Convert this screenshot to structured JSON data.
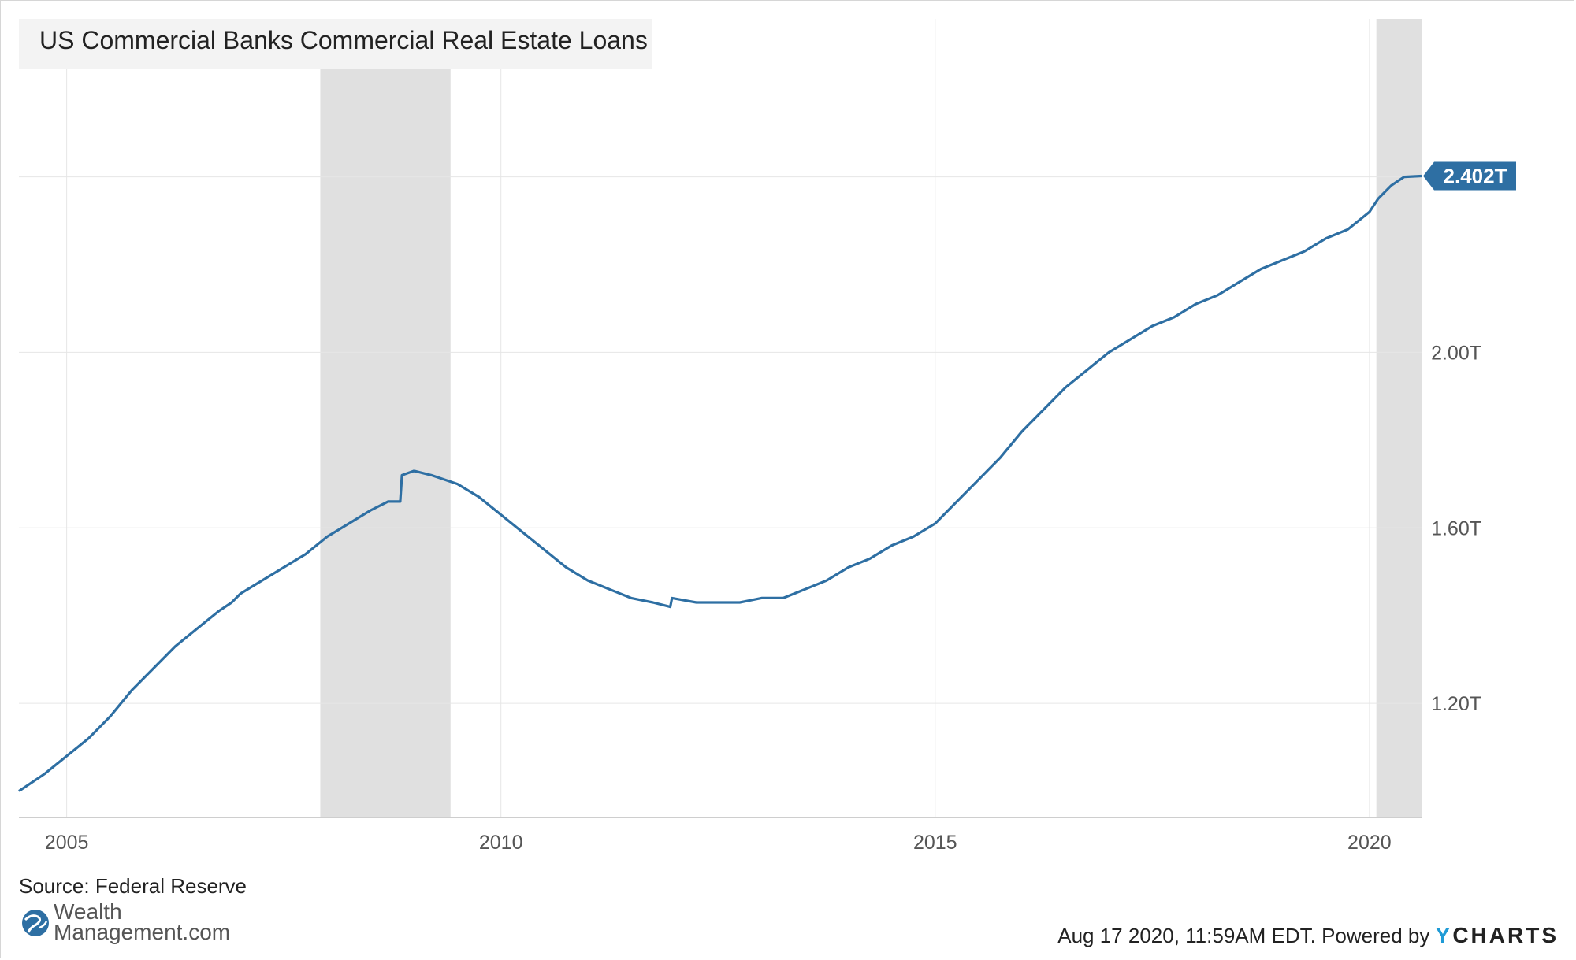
{
  "chart_data": {
    "type": "line",
    "title": "US Commercial Banks Commercial Real Estate Loans",
    "xlabel": "",
    "ylabel": "",
    "xlim": [
      2004.45,
      2020.6
    ],
    "ylim": [
      0.94,
      2.76
    ],
    "x_ticks": [
      2005,
      2010,
      2015,
      2020
    ],
    "x_tick_labels": [
      "2005",
      "2010",
      "2015",
      "2020"
    ],
    "y_ticks": [
      1.2,
      1.6,
      2.0,
      2.4
    ],
    "y_tick_labels": [
      "1.20T",
      "1.60T",
      "2.00T",
      "2.40T"
    ],
    "grid": true,
    "recessions": [
      [
        2007.92,
        2009.42
      ],
      [
        2020.08,
        2020.6
      ]
    ],
    "last_value_label": "2.402T",
    "line_color": "#2e6fa3",
    "badge_color": "#2e6fa3",
    "series": [
      {
        "x": [
          2004.45,
          2004.75,
          2005.0,
          2005.25,
          2005.5,
          2005.75,
          2006.0,
          2006.25,
          2006.5,
          2006.75,
          2006.9,
          2007.0,
          2007.25,
          2007.5,
          2007.75,
          2008.0,
          2008.25,
          2008.5,
          2008.7,
          2008.84,
          2008.86,
          2009.0,
          2009.2,
          2009.5,
          2009.75,
          2010.0,
          2010.25,
          2010.5,
          2010.75,
          2011.0,
          2011.25,
          2011.5,
          2011.75,
          2011.95,
          2011.97,
          2012.25,
          2012.5,
          2012.75,
          2013.0,
          2013.25,
          2013.5,
          2013.75,
          2014.0,
          2014.25,
          2014.5,
          2014.75,
          2015.0,
          2015.25,
          2015.5,
          2015.75,
          2016.0,
          2016.25,
          2016.5,
          2016.75,
          2017.0,
          2017.25,
          2017.5,
          2017.75,
          2018.0,
          2018.25,
          2018.5,
          2018.75,
          2019.0,
          2019.25,
          2019.5,
          2019.75,
          2020.0,
          2020.1,
          2020.25,
          2020.4,
          2020.6
        ],
        "y": [
          1.0,
          1.04,
          1.08,
          1.12,
          1.17,
          1.23,
          1.28,
          1.33,
          1.37,
          1.41,
          1.43,
          1.45,
          1.48,
          1.51,
          1.54,
          1.58,
          1.61,
          1.64,
          1.66,
          1.66,
          1.72,
          1.73,
          1.72,
          1.7,
          1.67,
          1.63,
          1.59,
          1.55,
          1.51,
          1.48,
          1.46,
          1.44,
          1.43,
          1.42,
          1.44,
          1.43,
          1.43,
          1.43,
          1.44,
          1.44,
          1.46,
          1.48,
          1.51,
          1.53,
          1.56,
          1.58,
          1.61,
          1.66,
          1.71,
          1.76,
          1.82,
          1.87,
          1.92,
          1.96,
          2.0,
          2.03,
          2.06,
          2.08,
          2.11,
          2.13,
          2.16,
          2.19,
          2.21,
          2.23,
          2.26,
          2.28,
          2.32,
          2.35,
          2.38,
          2.4,
          2.402
        ]
      }
    ]
  },
  "source_label": "Source: Federal Reserve",
  "logo": {
    "line1": "Wealth",
    "line2": "Management.com",
    "icon": "globe-icon"
  },
  "footer": {
    "timestamp": "Aug 17 2020, 11:59AM EDT.",
    "powered": "Powered by",
    "brand_y": "Y",
    "brand_rest": "CHARTS"
  }
}
